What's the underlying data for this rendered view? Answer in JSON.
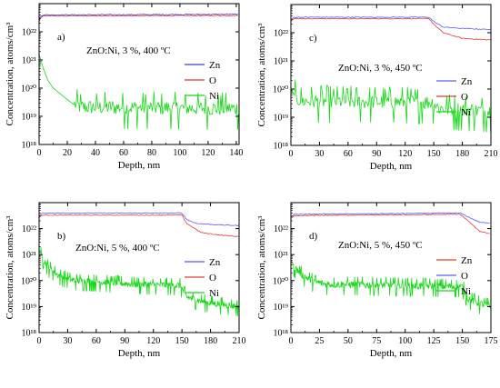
{
  "chart_data": [
    {
      "type": "line",
      "panel_label": "a)",
      "annotation": "ZnO:Ni, 3 %, 400 ºC",
      "xlabel": "Depth, nm",
      "ylabel": "Concentration, atoms/cm³",
      "xlim": [
        0,
        142
      ],
      "ylim_exponents": [
        18,
        23
      ],
      "xticks": [
        0,
        20,
        40,
        60,
        80,
        100,
        120,
        140
      ],
      "yticks": [
        "10¹⁸",
        "10¹⁹",
        "10²⁰",
        "10²¹",
        "10²²"
      ],
      "y_scale": "log",
      "legend_position": "right",
      "series": [
        {
          "name": "Zn",
          "color": "#3b3bd6",
          "log10_values": [
            [
              0,
              22.4
            ],
            [
              1,
              22.55
            ],
            [
              3,
              22.6
            ],
            [
              142,
              22.62
            ]
          ]
        },
        {
          "name": "O",
          "color": "#e03a3a",
          "log10_values": [
            [
              0,
              22.35
            ],
            [
              1,
              22.5
            ],
            [
              3,
              22.56
            ],
            [
              142,
              22.58
            ]
          ]
        },
        {
          "name": "Ni",
          "color": "#18d818",
          "log10_values": [
            [
              0,
              21.2
            ],
            [
              3,
              20.7
            ],
            [
              6,
              20.3
            ],
            [
              10,
              20.0
            ],
            [
              15,
              19.8
            ],
            [
              20,
              19.6
            ],
            [
              25,
              19.4
            ],
            [
              30,
              19.3
            ],
            [
              142,
              19.25
            ]
          ],
          "noise_from": 25,
          "noise_amp": 0.55,
          "noise_step": 0.6
        }
      ]
    },
    {
      "type": "line",
      "panel_label": "c)",
      "annotation": "ZnO:Ni, 3 %, 450 ºC",
      "xlabel": "Depth, nm",
      "ylabel": "Concentration, atoms/cm³",
      "xlim": [
        0,
        210
      ],
      "ylim_exponents": [
        18,
        23
      ],
      "xticks": [
        0,
        30,
        60,
        90,
        120,
        150,
        180,
        210
      ],
      "yticks": [
        "10¹⁸",
        "10¹⁹",
        "10²⁰",
        "10²¹",
        "10²²"
      ],
      "y_scale": "log",
      "legend_position": "right",
      "series": [
        {
          "name": "Zn",
          "color": "#5a5af0",
          "log10_values": [
            [
              0,
              22.45
            ],
            [
              3,
              22.55
            ],
            [
              145,
              22.55
            ],
            [
              150,
              22.4
            ],
            [
              160,
              22.2
            ],
            [
              180,
              22.15
            ],
            [
              205,
              22.12
            ]
          ]
        },
        {
          "name": "O",
          "color": "#e03a3a",
          "log10_values": [
            [
              0,
              22.42
            ],
            [
              3,
              22.5
            ],
            [
              145,
              22.5
            ],
            [
              150,
              22.3
            ],
            [
              160,
              22.0
            ],
            [
              180,
              21.8
            ],
            [
              205,
              21.75
            ]
          ]
        },
        {
          "name": "Ni",
          "color": "#18d818",
          "log10_values": [
            [
              0,
              20.0
            ],
            [
              5,
              19.7
            ],
            [
              10,
              19.55
            ],
            [
              150,
              19.5
            ],
            [
              155,
              19.3
            ],
            [
              205,
              19.2
            ]
          ],
          "noise_from": 4,
          "noise_amp": 0.55,
          "noise_step": 0.9
        }
      ]
    },
    {
      "type": "line",
      "panel_label": "b)",
      "annotation": "ZnO:Ni, 5 %, 400 ºC",
      "xlabel": "Depth, nm",
      "ylabel": "Concentration, atoms/cm³",
      "xlim": [
        0,
        210
      ],
      "ylim_exponents": [
        18,
        23
      ],
      "xticks": [
        0,
        30,
        60,
        90,
        120,
        150,
        180,
        210
      ],
      "yticks": [
        "10¹⁸",
        "10¹⁹",
        "10²⁰",
        "10²¹",
        "10²²"
      ],
      "y_scale": "log",
      "legend_position": "right",
      "series": [
        {
          "name": "Zn",
          "color": "#5a5af0",
          "log10_values": [
            [
              0,
              22.45
            ],
            [
              3,
              22.6
            ],
            [
              150,
              22.6
            ],
            [
              155,
              22.35
            ],
            [
              165,
              22.2
            ],
            [
              185,
              22.15
            ],
            [
              208,
              22.12
            ]
          ]
        },
        {
          "name": "O",
          "color": "#e03a3a",
          "log10_values": [
            [
              0,
              22.42
            ],
            [
              3,
              22.52
            ],
            [
              150,
              22.52
            ],
            [
              155,
              22.2
            ],
            [
              170,
              21.85
            ],
            [
              190,
              21.75
            ],
            [
              208,
              21.7
            ]
          ]
        },
        {
          "name": "Ni",
          "color": "#18d818",
          "log10_values": [
            [
              0,
              21.2
            ],
            [
              3,
              20.9
            ],
            [
              10,
              20.5
            ],
            [
              20,
              20.2
            ],
            [
              35,
              20.0
            ],
            [
              60,
              19.95
            ],
            [
              100,
              19.85
            ],
            [
              148,
              19.8
            ],
            [
              155,
              19.35
            ],
            [
              175,
              19.15
            ],
            [
              208,
              19.0
            ]
          ],
          "noise_from": 2,
          "noise_amp": 0.28,
          "noise_step": 0.5
        }
      ]
    },
    {
      "type": "line",
      "panel_label": "d)",
      "annotation": "ZnO:Ni, 5 %, 450 ºC",
      "xlabel": "Depth, nm",
      "ylabel": "Concentration, atoms/cm³",
      "xlim": [
        0,
        175
      ],
      "ylim_exponents": [
        18,
        23
      ],
      "xticks": [
        0,
        25,
        50,
        75,
        100,
        125,
        150,
        175
      ],
      "yticks": [
        "10¹⁸",
        "10¹⁹",
        "10²⁰",
        "10²¹",
        "10²²"
      ],
      "y_scale": "log",
      "legend_position": "right",
      "series": [
        {
          "name": "Zn",
          "color": "#e03a3a",
          "log10_values": [
            [
              0,
              22.4
            ],
            [
              3,
              22.5
            ],
            [
              148,
              22.55
            ],
            [
              155,
              22.3
            ],
            [
              165,
              21.9
            ],
            [
              175,
              21.8
            ]
          ]
        },
        {
          "name": "O",
          "color": "#5a5af0",
          "log10_values": [
            [
              0,
              22.45
            ],
            [
              3,
              22.55
            ],
            [
              148,
              22.6
            ],
            [
              155,
              22.45
            ],
            [
              165,
              22.25
            ],
            [
              175,
              22.2
            ]
          ]
        },
        {
          "name": "Ni",
          "color": "#18d818",
          "log10_values": [
            [
              0,
              20.8
            ],
            [
              3,
              20.5
            ],
            [
              10,
              20.2
            ],
            [
              20,
              19.95
            ],
            [
              30,
              19.85
            ],
            [
              100,
              19.8
            ],
            [
              150,
              19.75
            ],
            [
              155,
              19.3
            ],
            [
              165,
              19.1
            ],
            [
              175,
              19.0
            ]
          ],
          "noise_from": 2,
          "noise_amp": 0.3,
          "noise_step": 0.45
        }
      ]
    }
  ]
}
